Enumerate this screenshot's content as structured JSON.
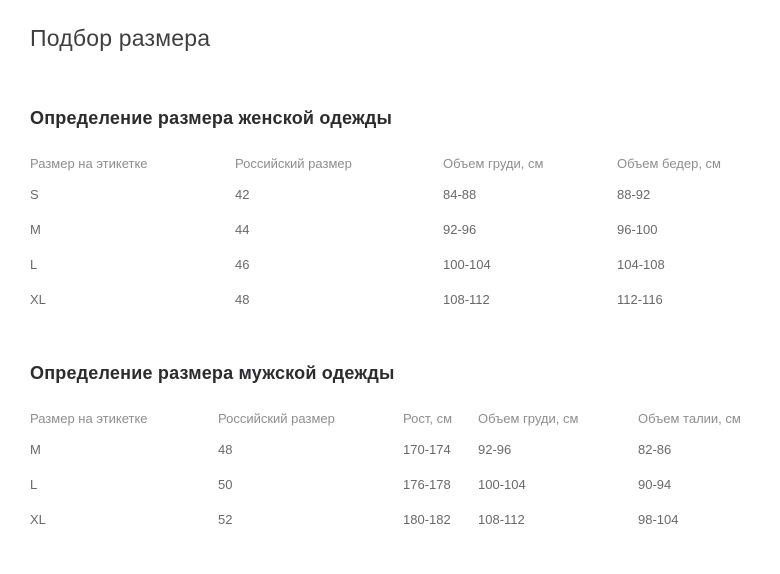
{
  "page": {
    "title": "Подбор размера"
  },
  "colors": {
    "background": "#ffffff",
    "title_text": "#3f3f41",
    "heading_text": "#2c2c2e",
    "table_header_text": "#8e8e8e",
    "table_cell_text": "#69696b"
  },
  "sections": [
    {
      "id": "women",
      "heading": "Определение размера женской одежды",
      "columns": [
        "Размер на этикетке",
        "Российский размер",
        "Объем груди, см",
        "Объем бедер, см"
      ],
      "rows": [
        [
          "S",
          "42",
          "84-88",
          "88-92"
        ],
        [
          "M",
          "44",
          "92-96",
          "96-100"
        ],
        [
          "L",
          "46",
          "100-104",
          "104-108"
        ],
        [
          "XL",
          "48",
          "108-112",
          "112-116"
        ]
      ]
    },
    {
      "id": "men",
      "heading": "Определение размера мужской одежды",
      "columns": [
        "Размер на этикетке",
        "Российский размер",
        "Рост, см",
        "Объем груди, см",
        "Объем талии, см"
      ],
      "rows": [
        [
          "M",
          "48",
          "170-174",
          "92-96",
          "82-86"
        ],
        [
          "L",
          "50",
          "176-178",
          "100-104",
          "90-94"
        ],
        [
          "XL",
          "52",
          "180-182",
          "108-112",
          "98-104"
        ]
      ]
    }
  ]
}
